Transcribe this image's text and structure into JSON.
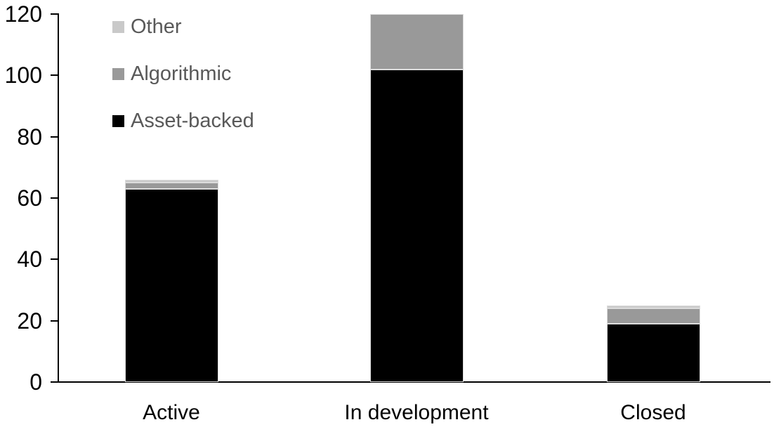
{
  "chart_data": {
    "type": "bar",
    "stacked": true,
    "categories": [
      "Active",
      "In development",
      "Closed"
    ],
    "series": [
      {
        "name": "Asset-backed",
        "color": "#000000",
        "values": [
          63,
          102,
          19
        ]
      },
      {
        "name": "Algorithmic",
        "color": "#999999",
        "values": [
          2,
          18,
          5
        ]
      },
      {
        "name": "Other",
        "color": "#c9c9c9",
        "values": [
          1,
          0,
          1
        ]
      }
    ],
    "xlabel": "",
    "ylabel": "",
    "ylim": [
      0,
      120
    ],
    "yticks": [
      0,
      20,
      40,
      60,
      80,
      100,
      120
    ],
    "grid": false,
    "legend_position": "top-left"
  },
  "legend": {
    "text_color": "#595959",
    "items": [
      {
        "label": "Other",
        "color": "#c9c9c9"
      },
      {
        "label": "Algorithmic",
        "color": "#999999"
      },
      {
        "label": "Asset-backed",
        "color": "#000000"
      }
    ]
  },
  "colors": {
    "axis": "#000000",
    "tick_label": "#000000",
    "category_label": "#000000",
    "background": "#ffffff",
    "segment_border": "#dcdcdc"
  }
}
